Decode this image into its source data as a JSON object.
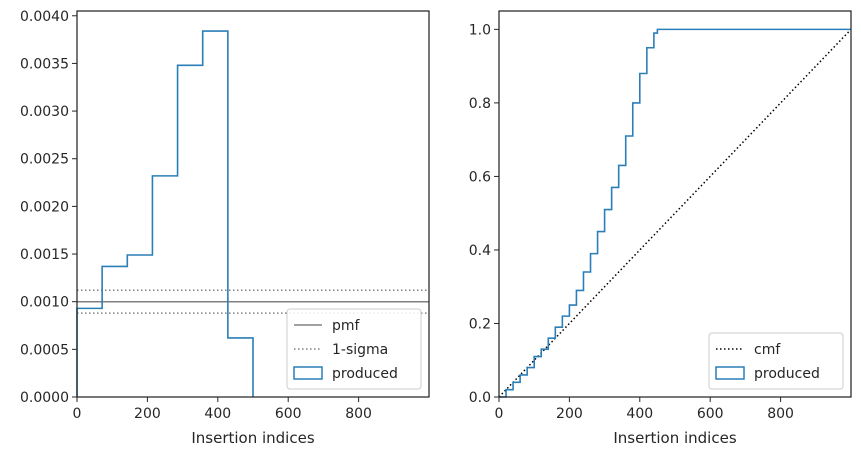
{
  "chart_data": [
    {
      "type": "histogram",
      "xlabel": "Insertion indices",
      "ylabel": "",
      "xlim": [
        0,
        1000
      ],
      "ylim": [
        0,
        0.00405
      ],
      "xticks": [
        0,
        200,
        400,
        600,
        800
      ],
      "yticks": [
        0.0,
        0.0005,
        0.001,
        0.0015,
        0.002,
        0.0025,
        0.003,
        0.0035,
        0.004
      ],
      "ytick_labels": [
        "0.0000",
        "0.0005",
        "0.0010",
        "0.0015",
        "0.0020",
        "0.0025",
        "0.0030",
        "0.0035",
        "0.0040"
      ],
      "bin_edges": [
        0,
        71.4,
        142.9,
        214.3,
        285.7,
        357.1,
        428.6,
        500
      ],
      "values": [
        0.00093,
        0.00137,
        0.00149,
        0.00232,
        0.00348,
        0.00384,
        0.00062
      ],
      "pmf": 0.001,
      "sigma_band": [
        0.00088,
        0.00112
      ],
      "legend": {
        "position": "lower-right",
        "entries": [
          {
            "label": "pmf",
            "style": "line-solid",
            "color": "#808080"
          },
          {
            "label": "1-sigma",
            "style": "line-dotted",
            "color": "#808080"
          },
          {
            "label": "produced",
            "style": "box",
            "color": "#2a7fb8"
          }
        ]
      }
    },
    {
      "type": "step-cdf",
      "xlabel": "Insertion indices",
      "ylabel": "",
      "xlim": [
        0,
        1000
      ],
      "ylim": [
        0,
        1.05
      ],
      "xticks": [
        0,
        200,
        400,
        600,
        800
      ],
      "yticks": [
        0.0,
        0.2,
        0.4,
        0.6,
        0.8,
        1.0
      ],
      "ytick_labels": [
        "0.0",
        "0.2",
        "0.4",
        "0.6",
        "0.8",
        "1.0"
      ],
      "cmf": {
        "x": [
          0,
          1000
        ],
        "y": [
          0,
          1
        ]
      },
      "produced": {
        "x": [
          0,
          20,
          40,
          60,
          80,
          100,
          120,
          140,
          160,
          180,
          200,
          220,
          240,
          260,
          280,
          300,
          320,
          340,
          360,
          380,
          400,
          420,
          440,
          450,
          460,
          1000
        ],
        "y": [
          0,
          0.02,
          0.04,
          0.06,
          0.08,
          0.11,
          0.13,
          0.16,
          0.19,
          0.22,
          0.25,
          0.29,
          0.34,
          0.39,
          0.45,
          0.51,
          0.57,
          0.63,
          0.71,
          0.8,
          0.88,
          0.95,
          0.99,
          1.0,
          1.0,
          1.0
        ]
      },
      "legend": {
        "position": "lower-right",
        "entries": [
          {
            "label": "cmf",
            "style": "line-dotted",
            "color": "#000000"
          },
          {
            "label": "produced",
            "style": "box",
            "color": "#2a7fb8"
          }
        ]
      }
    }
  ]
}
